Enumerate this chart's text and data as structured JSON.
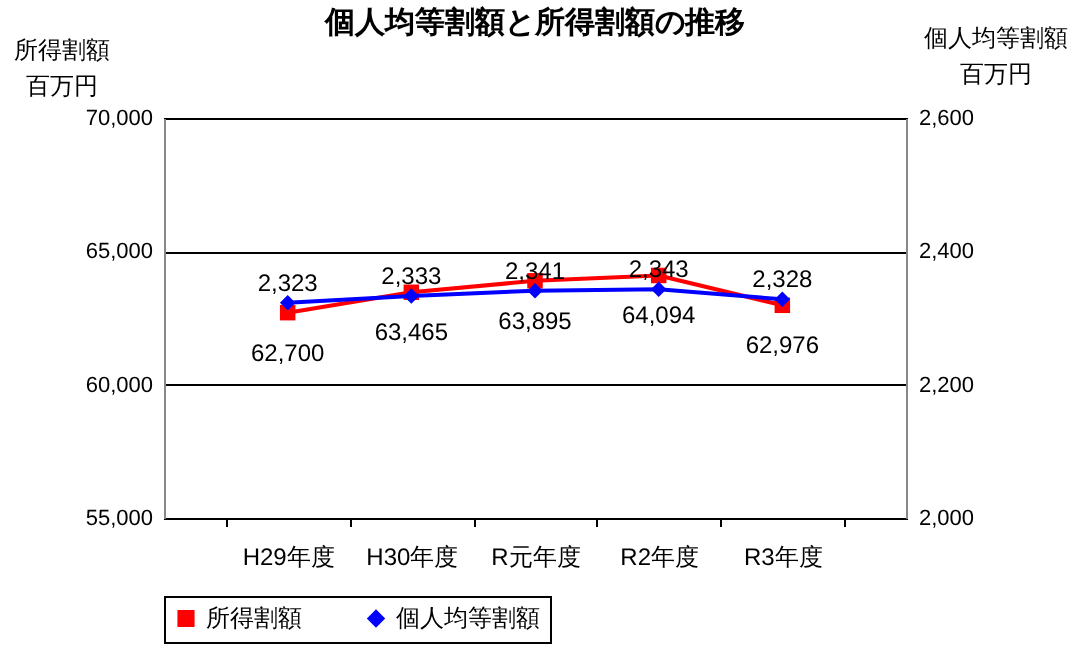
{
  "chart_data": {
    "type": "line",
    "title": "個人均等割額と所得割額の推移",
    "ylabel": "所得割額百万円",
    "y2label": "個人均等割額百万円",
    "categories": [
      "H29年度",
      "H30年度",
      "R元年度",
      "R2年度",
      "R3年度"
    ],
    "series": [
      {
        "name": "所得割額",
        "color": "#ff0000",
        "marker": "square",
        "values": [
          62700,
          63465,
          63895,
          64094,
          62976
        ],
        "value_labels": [
          "62,700",
          "63,465",
          "63,895",
          "64,094",
          "62,976"
        ]
      },
      {
        "name": "個人均等割額",
        "color": "#0000ff",
        "marker": "diamond",
        "axis": "y2",
        "values": [
          2323,
          2333,
          2341,
          2343,
          2328
        ],
        "value_labels": [
          "2,323",
          "2,333",
          "2,341",
          "2,343",
          "2,328"
        ]
      }
    ],
    "ylim": [
      55000,
      70000
    ],
    "yticks": [
      {
        "value": 55000,
        "label": "55,000"
      },
      {
        "value": 60000,
        "label": "60,000"
      },
      {
        "value": 65000,
        "label": "65,000"
      },
      {
        "value": 70000,
        "label": "70,000"
      }
    ],
    "y2lim": [
      2000,
      2600
    ],
    "y2ticks": [
      {
        "value": 2000,
        "label": "2,000"
      },
      {
        "value": 2200,
        "label": "2,200"
      },
      {
        "value": 2400,
        "label": "2,400"
      },
      {
        "value": 2600,
        "label": "2,600"
      }
    ],
    "grid": "y",
    "legend": "bottom"
  }
}
